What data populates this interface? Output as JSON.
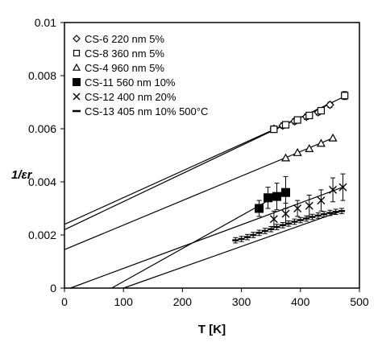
{
  "chart_data": {
    "type": "scatter",
    "xlabel": "T [K]",
    "ylabel": "1/εr",
    "xlim": [
      0,
      500
    ],
    "ylim": [
      0,
      0.01
    ],
    "x_ticks": [
      "0",
      "100",
      "200",
      "300",
      "400",
      "500"
    ],
    "y_ticks": [
      "0",
      "0.002",
      "0.004",
      "0.006",
      "0.008",
      "0.01"
    ],
    "x_tick_values": [
      0,
      100,
      200,
      300,
      400,
      500
    ],
    "y_tick_values": [
      0,
      0.002,
      0.004,
      0.006,
      0.008,
      0.01
    ],
    "grid": false,
    "legend_position": "top-left",
    "series": [
      {
        "name": "CS-6   220 nm 5%",
        "marker": "diamond",
        "points": [
          {
            "x": 355,
            "y": 0.006,
            "err": 0.0001
          },
          {
            "x": 370,
            "y": 0.00612,
            "err": 0.0001
          },
          {
            "x": 390,
            "y": 0.00628,
            "err": 0.0001
          },
          {
            "x": 410,
            "y": 0.00645,
            "err": 0.0001
          },
          {
            "x": 430,
            "y": 0.00662,
            "err": 0.0001
          },
          {
            "x": 450,
            "y": 0.0069,
            "err": 0.0001
          }
        ],
        "fit": [
          [
            0,
            0.0024
          ],
          [
            455,
            0.00698
          ]
        ]
      },
      {
        "name": "CS-8   360 nm 5%",
        "marker": "square-open",
        "points": [
          {
            "x": 355,
            "y": 0.00598,
            "err": 0.0001
          },
          {
            "x": 375,
            "y": 0.00615,
            "err": 0.0001
          },
          {
            "x": 395,
            "y": 0.00633,
            "err": 0.0001
          },
          {
            "x": 415,
            "y": 0.0065,
            "err": 0.0001
          },
          {
            "x": 435,
            "y": 0.00668,
            "err": 0.0001
          },
          {
            "x": 475,
            "y": 0.00725,
            "err": 0.00015
          }
        ],
        "fit": [
          [
            0,
            0.0022
          ],
          [
            478,
            0.00725
          ]
        ]
      },
      {
        "name": "CS-4   960 nm 5%",
        "marker": "triangle-open",
        "points": [
          {
            "x": 375,
            "y": 0.0049
          },
          {
            "x": 395,
            "y": 0.0051
          },
          {
            "x": 415,
            "y": 0.00525
          },
          {
            "x": 435,
            "y": 0.00545
          },
          {
            "x": 455,
            "y": 0.00565
          }
        ],
        "fit": [
          [
            0,
            0.00145
          ],
          [
            455,
            0.00565
          ]
        ]
      },
      {
        "name": "CS-11 560 nm 10%",
        "marker": "square-filled",
        "points": [
          {
            "x": 330,
            "y": 0.003,
            "err": 0.0003
          },
          {
            "x": 345,
            "y": 0.0034,
            "err": 0.0004
          },
          {
            "x": 360,
            "y": 0.00345,
            "err": 0.0005
          },
          {
            "x": 375,
            "y": 0.0036,
            "err": 0.0006
          }
        ],
        "fit": [
          [
            80,
            0.0
          ],
          [
            378,
            0.0037
          ]
        ]
      },
      {
        "name": "CS-12 400 nm 20%",
        "marker": "cross",
        "points": [
          {
            "x": 355,
            "y": 0.0026,
            "err": 0.0003
          },
          {
            "x": 375,
            "y": 0.0028,
            "err": 0.0004
          },
          {
            "x": 395,
            "y": 0.003,
            "err": 0.0003
          },
          {
            "x": 415,
            "y": 0.0031,
            "err": 0.0004
          },
          {
            "x": 435,
            "y": 0.0033,
            "err": 0.0004
          },
          {
            "x": 455,
            "y": 0.0037,
            "err": 0.00045
          },
          {
            "x": 472,
            "y": 0.0038,
            "err": 0.0005
          }
        ],
        "fit": [
          [
            10,
            0.0
          ],
          [
            472,
            0.0038
          ]
        ]
      },
      {
        "name": "CS-13 405 nm 10% 500°C",
        "marker": "dash",
        "points": [
          {
            "x": 290,
            "y": 0.0018
          },
          {
            "x": 300,
            "y": 0.00185
          },
          {
            "x": 310,
            "y": 0.00192
          },
          {
            "x": 320,
            "y": 0.002
          },
          {
            "x": 330,
            "y": 0.00208
          },
          {
            "x": 340,
            "y": 0.00215
          },
          {
            "x": 350,
            "y": 0.00222
          },
          {
            "x": 360,
            "y": 0.0023
          },
          {
            "x": 370,
            "y": 0.00237
          },
          {
            "x": 380,
            "y": 0.00243
          },
          {
            "x": 390,
            "y": 0.0025
          },
          {
            "x": 400,
            "y": 0.00256
          },
          {
            "x": 410,
            "y": 0.00262
          },
          {
            "x": 420,
            "y": 0.00268
          },
          {
            "x": 430,
            "y": 0.00273
          },
          {
            "x": 440,
            "y": 0.00278
          },
          {
            "x": 450,
            "y": 0.00283
          },
          {
            "x": 460,
            "y": 0.00287
          },
          {
            "x": 470,
            "y": 0.0029
          }
        ],
        "error_bars": true,
        "fit": [
          [
            100,
            0.0
          ],
          [
            472,
            0.00292
          ]
        ]
      }
    ]
  }
}
